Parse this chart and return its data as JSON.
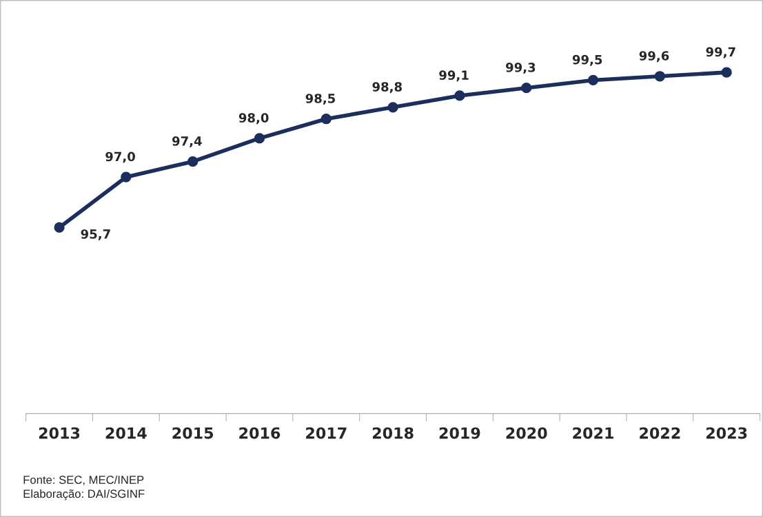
{
  "chart_data": {
    "type": "line",
    "categories": [
      "2013",
      "2014",
      "2015",
      "2016",
      "2017",
      "2018",
      "2019",
      "2020",
      "2021",
      "2022",
      "2023"
    ],
    "series": [
      {
        "color": "#1b2e5c",
        "values": [
          95.7,
          97.0,
          97.4,
          98.0,
          98.5,
          98.8,
          99.1,
          99.3,
          99.5,
          99.6,
          99.7
        ],
        "value_labels": [
          "95,7",
          "97,0",
          "97,4",
          "98,0",
          "98,5",
          "98,8",
          "99,1",
          "99,3",
          "99,5",
          "99,6",
          "99,7"
        ]
      }
    ],
    "tick_labels": "x",
    "grid": false,
    "legend": false,
    "marker": "circle",
    "line_style": "solid",
    "annotations": [
      "Fonte: SEC, MEC/INEP",
      "Elaboração: DAI/SGINF"
    ]
  }
}
